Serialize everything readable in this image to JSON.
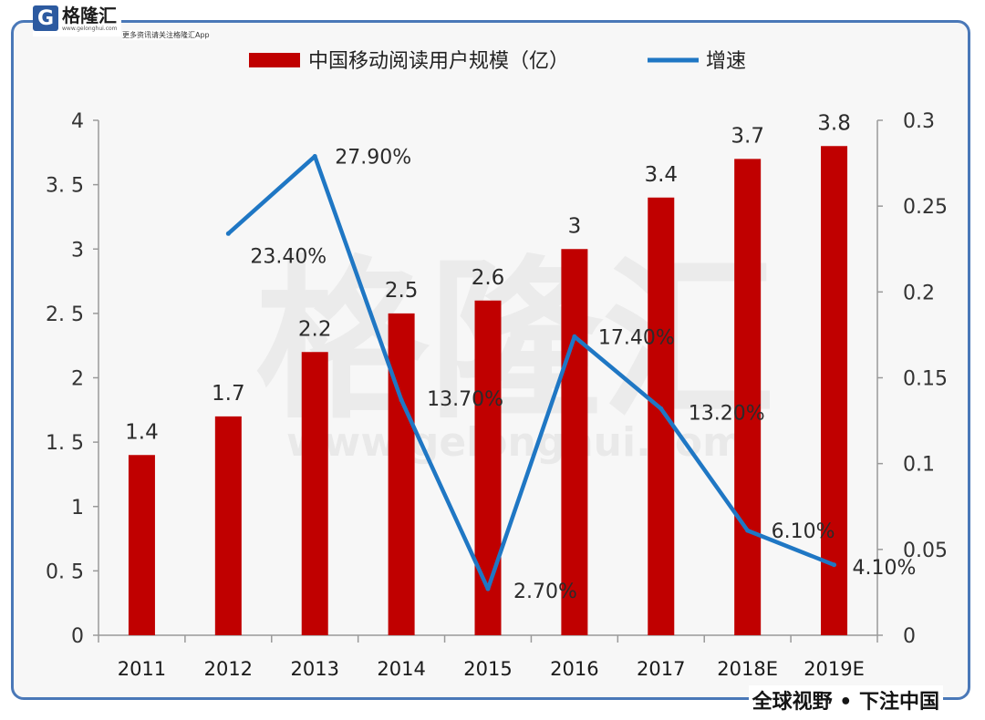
{
  "brand": {
    "logo_glyph": "G",
    "logo_name": "格隆汇",
    "logo_url": "www.gelonghui.com",
    "slogan": "更多资讯请关注格隆汇App",
    "footer": "全球视野 • 下注中国",
    "watermark_text": "格隆汇",
    "watermark_url": "www.gelonghui.com"
  },
  "chart_data": {
    "type": "bar",
    "categories": [
      "2011",
      "2012",
      "2013",
      "2014",
      "2015",
      "2016",
      "2017",
      "2018E",
      "2019E"
    ],
    "series": [
      {
        "name": "中国移动阅读用户规模（亿）",
        "type": "bar",
        "axis": "left",
        "color": "#c00000",
        "values": [
          1.4,
          1.7,
          2.2,
          2.5,
          2.6,
          3,
          3.4,
          3.7,
          3.8
        ],
        "labels": [
          "1.4",
          "1.7",
          "2.2",
          "2.5",
          "2.6",
          "3",
          "3.4",
          "3.7",
          "3.8"
        ]
      },
      {
        "name": "增速",
        "type": "line",
        "axis": "right",
        "color": "#1f77c4",
        "values": [
          null,
          0.234,
          0.279,
          0.137,
          0.027,
          0.174,
          0.132,
          0.061,
          0.041
        ],
        "labels": [
          "",
          "23.40%",
          "27.90%",
          "13.70%",
          "2.70%",
          "17.40%",
          "13.20%",
          "6.10%",
          "4.10%"
        ]
      }
    ],
    "y_left": {
      "ylim": [
        0,
        4
      ],
      "ticks": [
        0,
        0.5,
        1,
        1.5,
        2,
        2.5,
        3,
        3.5,
        4
      ],
      "tick_labels": [
        "0",
        "0. 5",
        "1",
        "1. 5",
        "2",
        "2. 5",
        "3",
        "3. 5",
        "4"
      ]
    },
    "y_right": {
      "ylim": [
        0,
        0.3
      ],
      "ticks": [
        0,
        0.05,
        0.1,
        0.15,
        0.2,
        0.25,
        0.3
      ],
      "tick_labels": [
        "0",
        "0.05",
        "0.1",
        "0.15",
        "0.2",
        "0.25",
        "0.3"
      ]
    },
    "legend_position": "top",
    "grid": false
  }
}
